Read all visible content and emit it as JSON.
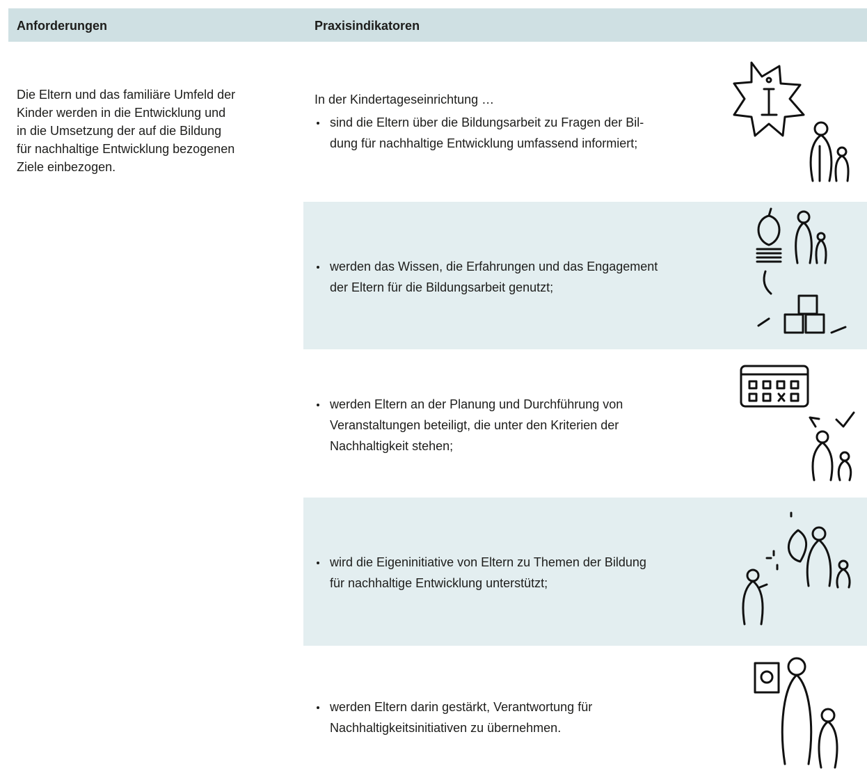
{
  "table": {
    "headers": [
      "Anforderungen",
      "Praxisindikatoren"
    ],
    "requirement": [
      "Die Eltern und das familiäre Umfeld der",
      "Kinder werden in die Entwicklung und",
      "in die Umsetzung der auf die Bildung",
      "für nachhaltige Entwicklung bezogenen",
      "Ziele einbezogen."
    ],
    "intro": "In der Kindertageseinrichtung …",
    "indicators": [
      [
        "sind die Eltern über die Bildungsarbeit zu Fragen der Bil-",
        "dung für nachhaltige Entwicklung umfassend informiert;"
      ],
      [
        "werden das Wissen, die Erfahrungen und das Engagement",
        "der Eltern für die Bildungsarbeit genutzt;"
      ],
      [
        "werden Eltern an der Planung und Durchführung von",
        "Veranstaltungen beteiligt, die unter den Kriterien der",
        "Nachhaltigkeit stehen;"
      ],
      [
        "wird die Eigeninitiative von Eltern zu Themen der Bildung",
        "für nachhaltige Entwicklung unterstützt;"
      ],
      [
        "werden Eltern darin gestärkt, Verantwortung für",
        "Nachhaltigkeitsinitiativen zu übernehmen."
      ]
    ]
  }
}
